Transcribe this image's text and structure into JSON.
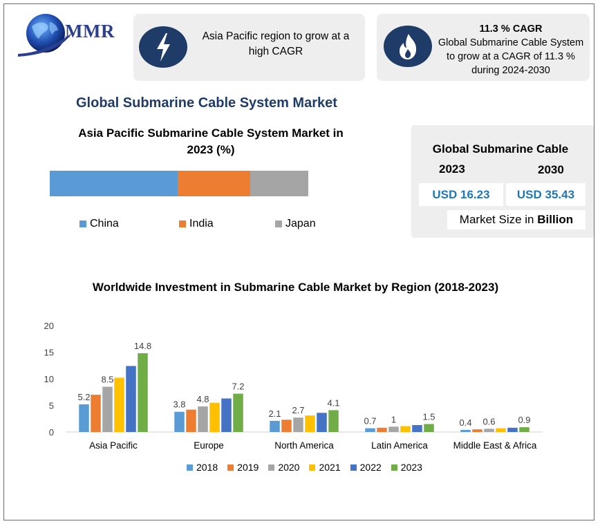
{
  "brand": {
    "logo_text": "MMR"
  },
  "card1": {
    "text": "Asia Pacific region to grow at a high CAGR",
    "icon": "lightning-bolt-icon"
  },
  "card2": {
    "title": "11.3 % CAGR",
    "text": "Global Submarine Cable System to grow at a CAGR of 11.3 % during 2024-2030",
    "icon": "flame-icon"
  },
  "main_title": "Global Submarine Cable System Market",
  "market_size": {
    "title": "Global Submarine Cable",
    "year1": "2023",
    "year2": "2030",
    "value1": "USD 16.23",
    "value2": "USD 35.43",
    "unit_prefix": "Market Size in",
    "unit_bold": "Billion"
  },
  "colors": {
    "navy": "#1f3c68",
    "blue": "#5b9bd5",
    "orange": "#ed7d31",
    "gray": "#a5a5a5",
    "yellow": "#ffc000",
    "darkblue": "#4472c4",
    "green": "#70ad47"
  },
  "chart_data": [
    {
      "type": "bar",
      "stacked": true,
      "title": "Asia Pacific Submarine Cable System Market in 2023 (%)",
      "series": [
        {
          "name": "China",
          "value": 49.5,
          "color": "#5b9bd5"
        },
        {
          "name": "India",
          "value": 28,
          "color": "#ed7d31"
        },
        {
          "name": "Japan",
          "value": 22.5,
          "color": "#a5a5a5"
        }
      ],
      "legend": "bottom"
    },
    {
      "type": "bar",
      "title": "Worldwide Investment in Submarine Cable Market by Region (2018-2023)",
      "categories": [
        "Asia Pacific",
        "Europe",
        "North America",
        "Latin America",
        "Middle East & Africa"
      ],
      "yticks": [
        "0",
        "5",
        "10",
        "15",
        "20"
      ],
      "ylim": [
        0,
        20
      ],
      "legend": "bottom",
      "series": [
        {
          "name": "2018",
          "color": "#5b9bd5",
          "values": [
            5.2,
            3.8,
            2.1,
            0.7,
            0.4
          ],
          "labels": [
            "5.2",
            "3.8",
            "2.1",
            "0.7",
            "0.4"
          ]
        },
        {
          "name": "2019",
          "color": "#ed7d31",
          "values": [
            7.0,
            4.2,
            2.3,
            0.8,
            0.5
          ],
          "labels": [
            "",
            "",
            "",
            "",
            ""
          ]
        },
        {
          "name": "2020",
          "color": "#a5a5a5",
          "values": [
            8.5,
            4.8,
            2.7,
            1.0,
            0.6
          ],
          "labels": [
            "8.5",
            "4.8",
            "2.7",
            "1",
            "0.6"
          ]
        },
        {
          "name": "2021",
          "color": "#ffc000",
          "values": [
            10.2,
            5.5,
            3.1,
            1.1,
            0.7
          ],
          "labels": [
            "",
            "",
            "",
            "",
            ""
          ]
        },
        {
          "name": "2022",
          "color": "#4472c4",
          "values": [
            12.4,
            6.3,
            3.6,
            1.3,
            0.8
          ],
          "labels": [
            "",
            "",
            "",
            "",
            ""
          ]
        },
        {
          "name": "2023",
          "color": "#70ad47",
          "values": [
            14.8,
            7.2,
            4.1,
            1.5,
            0.9
          ],
          "labels": [
            "14.8",
            "7.2",
            "4.1",
            "1.5",
            "0.9"
          ]
        }
      ]
    }
  ]
}
